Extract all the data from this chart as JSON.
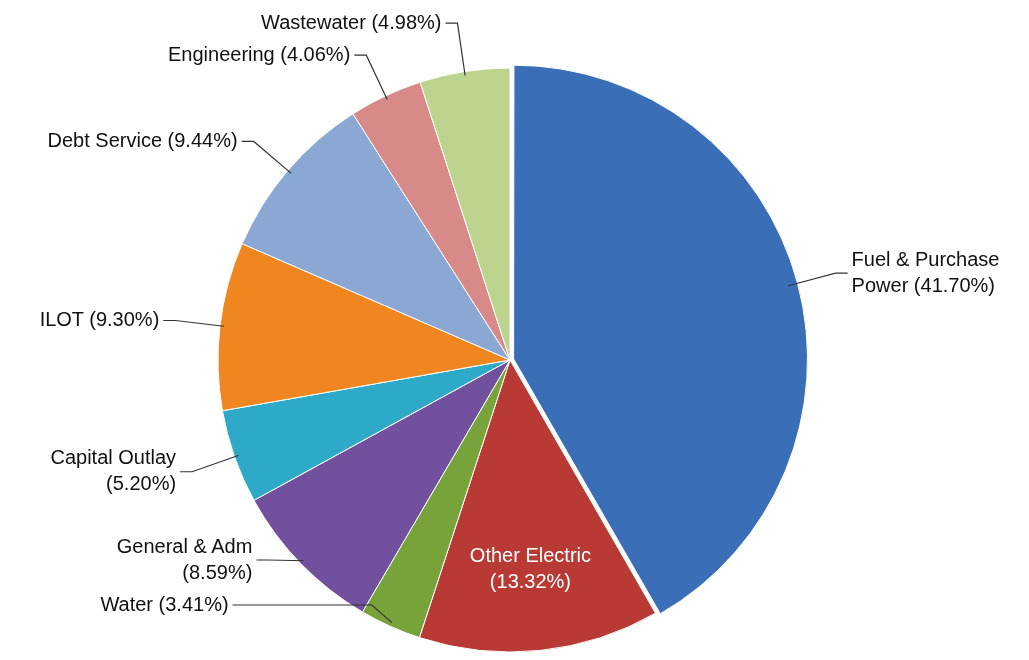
{
  "chart_data": {
    "type": "pie",
    "categories": [
      "Fuel & Purchase Power",
      "Other Electric",
      "Water",
      "General & Adm",
      "Capital Outlay",
      "ILOT",
      "Debt Service",
      "Engineering",
      "Wastewater"
    ],
    "values": [
      41.7,
      13.32,
      3.41,
      8.59,
      5.2,
      9.3,
      9.44,
      4.06,
      4.98
    ],
    "value_labels": [
      "(41.70%)",
      "(13.32%)",
      "(3.41%)",
      "(8.59%)",
      "(5.20%)",
      "(9.30%)",
      "(9.44%)",
      "(4.06%)",
      "(4.98%)"
    ],
    "colors": [
      "#3a6fb8",
      "#b93a35",
      "#78a23a",
      "#71509e",
      "#2fa9c8",
      "#ef861f",
      "#8ba7d4",
      "#d88a88",
      "#bcd48d"
    ],
    "legend": false
  }
}
